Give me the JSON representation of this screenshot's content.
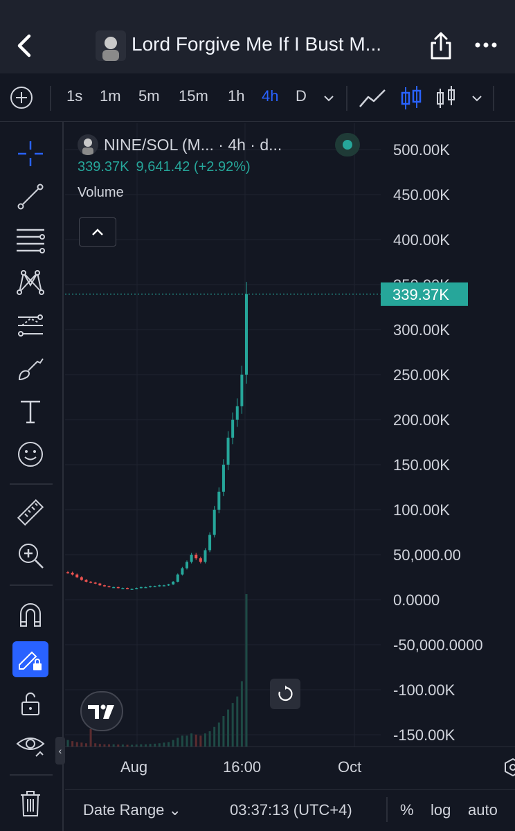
{
  "header": {
    "title": "Lord Forgive Me If I Bust M...",
    "back_icon": "chevron-left-icon",
    "share_icon": "share-icon",
    "more_icon": "more-dots-icon"
  },
  "toolbar": {
    "intervals": [
      "1s",
      "1m",
      "5m",
      "15m",
      "1h",
      "4h",
      "D"
    ],
    "active_interval": "4h"
  },
  "legend": {
    "symbol": "NINE/SOL (M...  · 4h · d...",
    "last": "339.37K",
    "change": "9,641.42 (+2.92%)",
    "volume_label": "Volume"
  },
  "price_badge": "339.37K",
  "bottombar": {
    "date_range": "Date Range",
    "time": "03:37:13 (UTC+4)",
    "percent": "%",
    "log": "log",
    "auto": "auto"
  },
  "colors": {
    "up": "#26a69a",
    "down": "#ef5350",
    "accent": "#2962ff",
    "background": "#131722"
  },
  "chart_data": {
    "type": "candlestick",
    "title": "NINE/SOL",
    "interval": "4h",
    "yticks": [
      "500.00K",
      "450.00K",
      "400.00K",
      "350.00K",
      "300.00K",
      "250.00K",
      "200.00K",
      "150.00K",
      "100.00K",
      "50,000.00",
      "0.0000",
      "-50,000.0000",
      "-100.00K",
      "-150.00K"
    ],
    "ytick_values": [
      500000,
      450000,
      400000,
      350000,
      300000,
      250000,
      200000,
      150000,
      100000,
      50000,
      0,
      -50000,
      -100000,
      -150000
    ],
    "ylim": [
      -150000,
      500000
    ],
    "xticks": [
      "Aug",
      "16:00",
      "Oct"
    ],
    "last_price": 339370,
    "price_close": [
      30000,
      28000,
      25000,
      22000,
      20000,
      19000,
      18000,
      16000,
      15000,
      14000,
      14000,
      13000,
      13000,
      12000,
      12000,
      13000,
      14000,
      14000,
      15000,
      15000,
      16000,
      16000,
      17000,
      20000,
      28000,
      35000,
      42000,
      50000,
      46000,
      42000,
      55000,
      72000,
      100000,
      120000,
      150000,
      180000,
      200000,
      215000,
      250000,
      339370
    ],
    "volume": [
      3000,
      2500,
      2000,
      1800,
      1500,
      8000,
      1500,
      1200,
      1000,
      1000,
      1000,
      900,
      900,
      800,
      800,
      900,
      1000,
      1000,
      1200,
      1300,
      1500,
      1800,
      2000,
      3000,
      4000,
      5000,
      5000,
      6000,
      5500,
      5000,
      6000,
      7000,
      9000,
      11000,
      14000,
      17000,
      20000,
      23000,
      30000,
      70000
    ]
  }
}
